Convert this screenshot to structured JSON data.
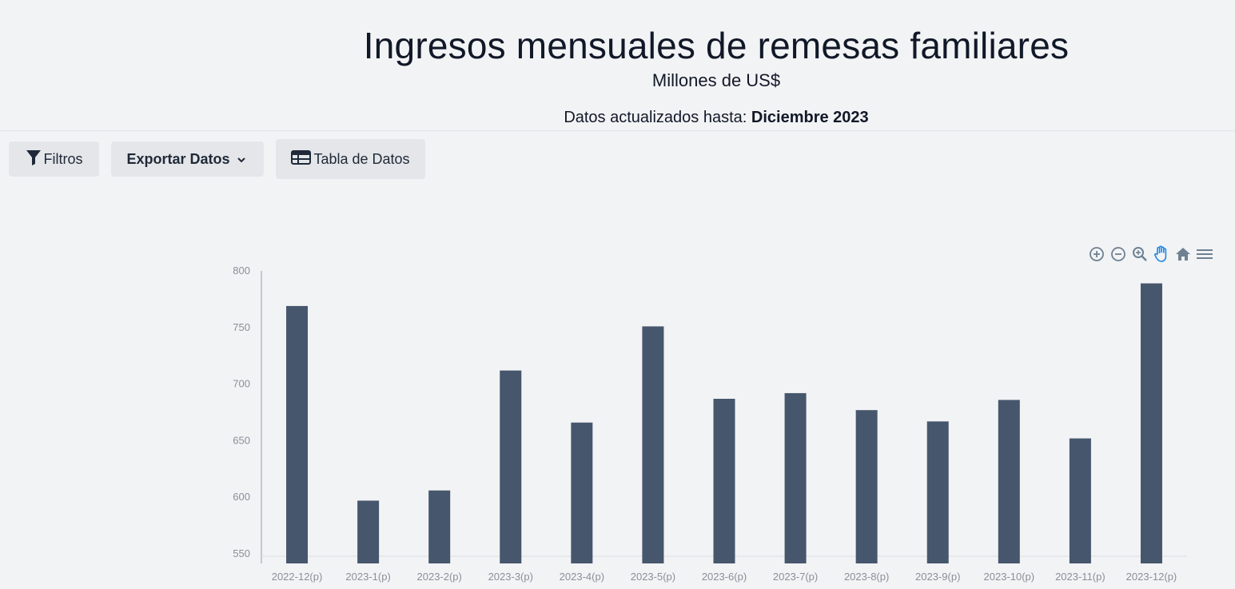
{
  "header": {
    "title": "Ingresos mensuales de remesas familiares",
    "subtitle": "Millones de US$",
    "updated_label": "Datos actualizados hasta:",
    "updated_value": "Diciembre 2023"
  },
  "toolbar_buttons": {
    "filters_label": "Filtros",
    "export_label": "Exportar Datos",
    "table_label": "Tabla de Datos"
  },
  "chart_tools": [
    "zoom-in-icon",
    "zoom-out-icon",
    "zoom-select-icon",
    "pan-hand-icon",
    "reset-home-icon",
    "menu-icon"
  ],
  "colors": {
    "bar": "#46566c",
    "axis": "#8aa0b4",
    "accent": "#1e88e5"
  },
  "chart_data": {
    "type": "bar",
    "title": "Ingresos mensuales de remesas familiares",
    "subtitle": "Millones de US$",
    "categories": [
      "2022-12(p)",
      "2023-1(p)",
      "2023-2(p)",
      "2023-3(p)",
      "2023-4(p)",
      "2023-5(p)",
      "2023-6(p)",
      "2023-7(p)",
      "2023-8(p)",
      "2023-9(p)",
      "2023-10(p)",
      "2023-11(p)",
      "2023-12(p)"
    ],
    "values": [
      769,
      597,
      606,
      712,
      666,
      751,
      687,
      692,
      677,
      667,
      686,
      652,
      789
    ],
    "ylim": [
      550,
      800
    ],
    "yticks": [
      550,
      600,
      650,
      700,
      750,
      800
    ],
    "grid": false,
    "legend": "none"
  }
}
